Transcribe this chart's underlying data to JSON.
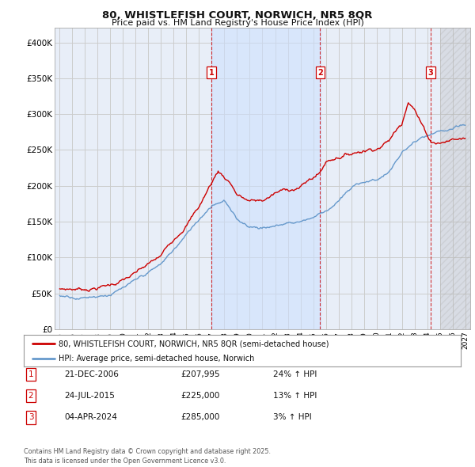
{
  "title_line1": "80, WHISTLEFISH COURT, NORWICH, NR5 8QR",
  "title_line2": "Price paid vs. HM Land Registry's House Price Index (HPI)",
  "ylim": [
    0,
    420000
  ],
  "yticks": [
    0,
    50000,
    100000,
    150000,
    200000,
    250000,
    300000,
    350000,
    400000
  ],
  "ytick_labels": [
    "£0",
    "£50K",
    "£100K",
    "£150K",
    "£200K",
    "£250K",
    "£300K",
    "£350K",
    "£400K"
  ],
  "xlim_start": 1994.6,
  "xlim_end": 2027.4,
  "xticks": [
    1995,
    1996,
    1997,
    1998,
    1999,
    2000,
    2001,
    2002,
    2003,
    2004,
    2005,
    2006,
    2007,
    2008,
    2009,
    2010,
    2011,
    2012,
    2013,
    2014,
    2015,
    2016,
    2017,
    2018,
    2019,
    2020,
    2021,
    2022,
    2023,
    2024,
    2025,
    2026,
    2027
  ],
  "price_paid_color": "#cc0000",
  "hpi_color": "#6699cc",
  "hpi_fill_color": "#cce0ff",
  "grid_color": "#cccccc",
  "plot_bg_color": "#e8eef8",
  "shaded_region_start": 2007.0,
  "shaded_region_end": 2015.58,
  "hatch_start": 2025.0,
  "hatch_end": 2027.4,
  "legend_label_price": "80, WHISTLEFISH COURT, NORWICH, NR5 8QR (semi-detached house)",
  "legend_label_hpi": "HPI: Average price, semi-detached house, Norwich",
  "transactions": [
    {
      "num": 1,
      "date": "21-DEC-2006",
      "price": "£207,995",
      "hpi": "24% ↑ HPI",
      "year": 2006.97
    },
    {
      "num": 2,
      "date": "24-JUL-2015",
      "price": "£225,000",
      "hpi": "13% ↑ HPI",
      "year": 2015.56
    },
    {
      "num": 3,
      "date": "04-APR-2024",
      "price": "£285,000",
      "hpi": "3% ↑ HPI",
      "year": 2024.27
    }
  ],
  "footnote": "Contains HM Land Registry data © Crown copyright and database right 2025.\nThis data is licensed under the Open Government Licence v3.0.",
  "price_anchors_x": [
    1995,
    1997,
    1999,
    2001,
    2003,
    2005,
    2006,
    2006.97,
    2007.5,
    2008.5,
    2009,
    2010,
    2011,
    2012,
    2013,
    2014,
    2015.56,
    2016,
    2017,
    2018,
    2019,
    2020,
    2021,
    2022,
    2022.5,
    2023,
    2023.5,
    2024.27,
    2025,
    2026,
    2027
  ],
  "price_anchors_y": [
    55000,
    57000,
    65000,
    80000,
    100000,
    150000,
    175000,
    207995,
    225000,
    210000,
    195000,
    185000,
    185000,
    195000,
    200000,
    205000,
    225000,
    240000,
    250000,
    255000,
    262000,
    268000,
    280000,
    305000,
    340000,
    330000,
    310000,
    285000,
    285000,
    290000,
    292000
  ],
  "hpi_anchors_x": [
    1995,
    1997,
    1999,
    2001,
    2003,
    2005,
    2007,
    2008,
    2009,
    2010,
    2011,
    2012,
    2013,
    2014,
    2015,
    2016,
    2017,
    2018,
    2019,
    2020,
    2021,
    2022,
    2023,
    2024,
    2025,
    2026,
    2027
  ],
  "hpi_anchors_y": [
    46000,
    48000,
    56000,
    70000,
    90000,
    130000,
    175000,
    185000,
    155000,
    148000,
    148000,
    150000,
    155000,
    158000,
    165000,
    175000,
    190000,
    205000,
    215000,
    218000,
    230000,
    255000,
    270000,
    275000,
    278000,
    280000,
    282000
  ]
}
